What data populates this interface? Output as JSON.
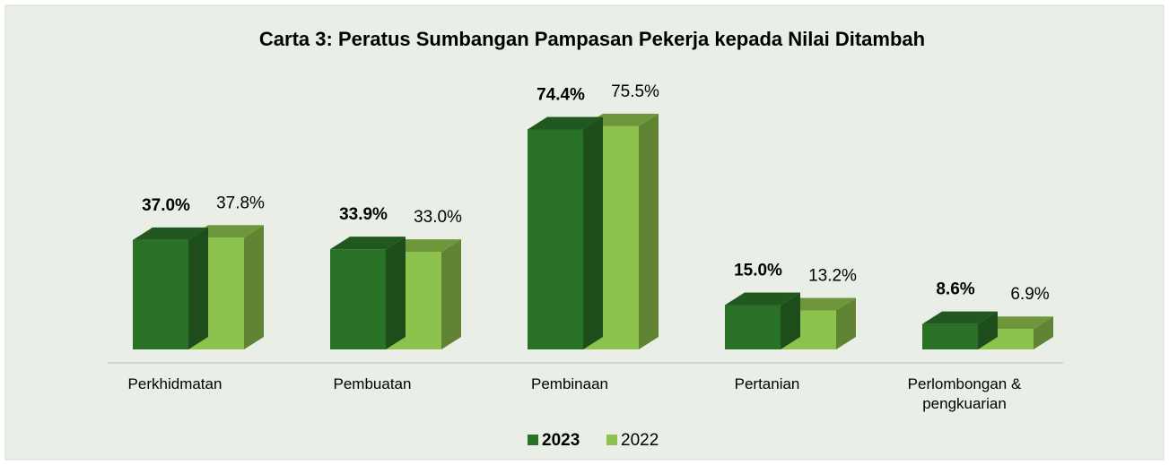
{
  "chart_data": {
    "type": "bar3d",
    "title": "Carta 3: Peratus Sumbangan Pampasan Pekerja kepada Nilai Ditambah",
    "categories": [
      "Perkhidmatan",
      "Pembuatan",
      "Pembinaan",
      "Pertanian",
      "Perlombongan & pengkuarian"
    ],
    "series": [
      {
        "name": "2023",
        "color": "#2a7128",
        "values": [
          37.0,
          33.9,
          74.4,
          15.0,
          8.6
        ],
        "value_labels": [
          "37.0%",
          "33.9%",
          "74.4%",
          "15.0%",
          "8.6%"
        ]
      },
      {
        "name": "2022",
        "color": "#8dc24c",
        "values": [
          37.8,
          33.0,
          75.5,
          13.2,
          6.9
        ],
        "value_labels": [
          "37.8%",
          "33.0%",
          "75.5%",
          "13.2%",
          "6.9%"
        ]
      }
    ],
    "legend": "bottom"
  }
}
